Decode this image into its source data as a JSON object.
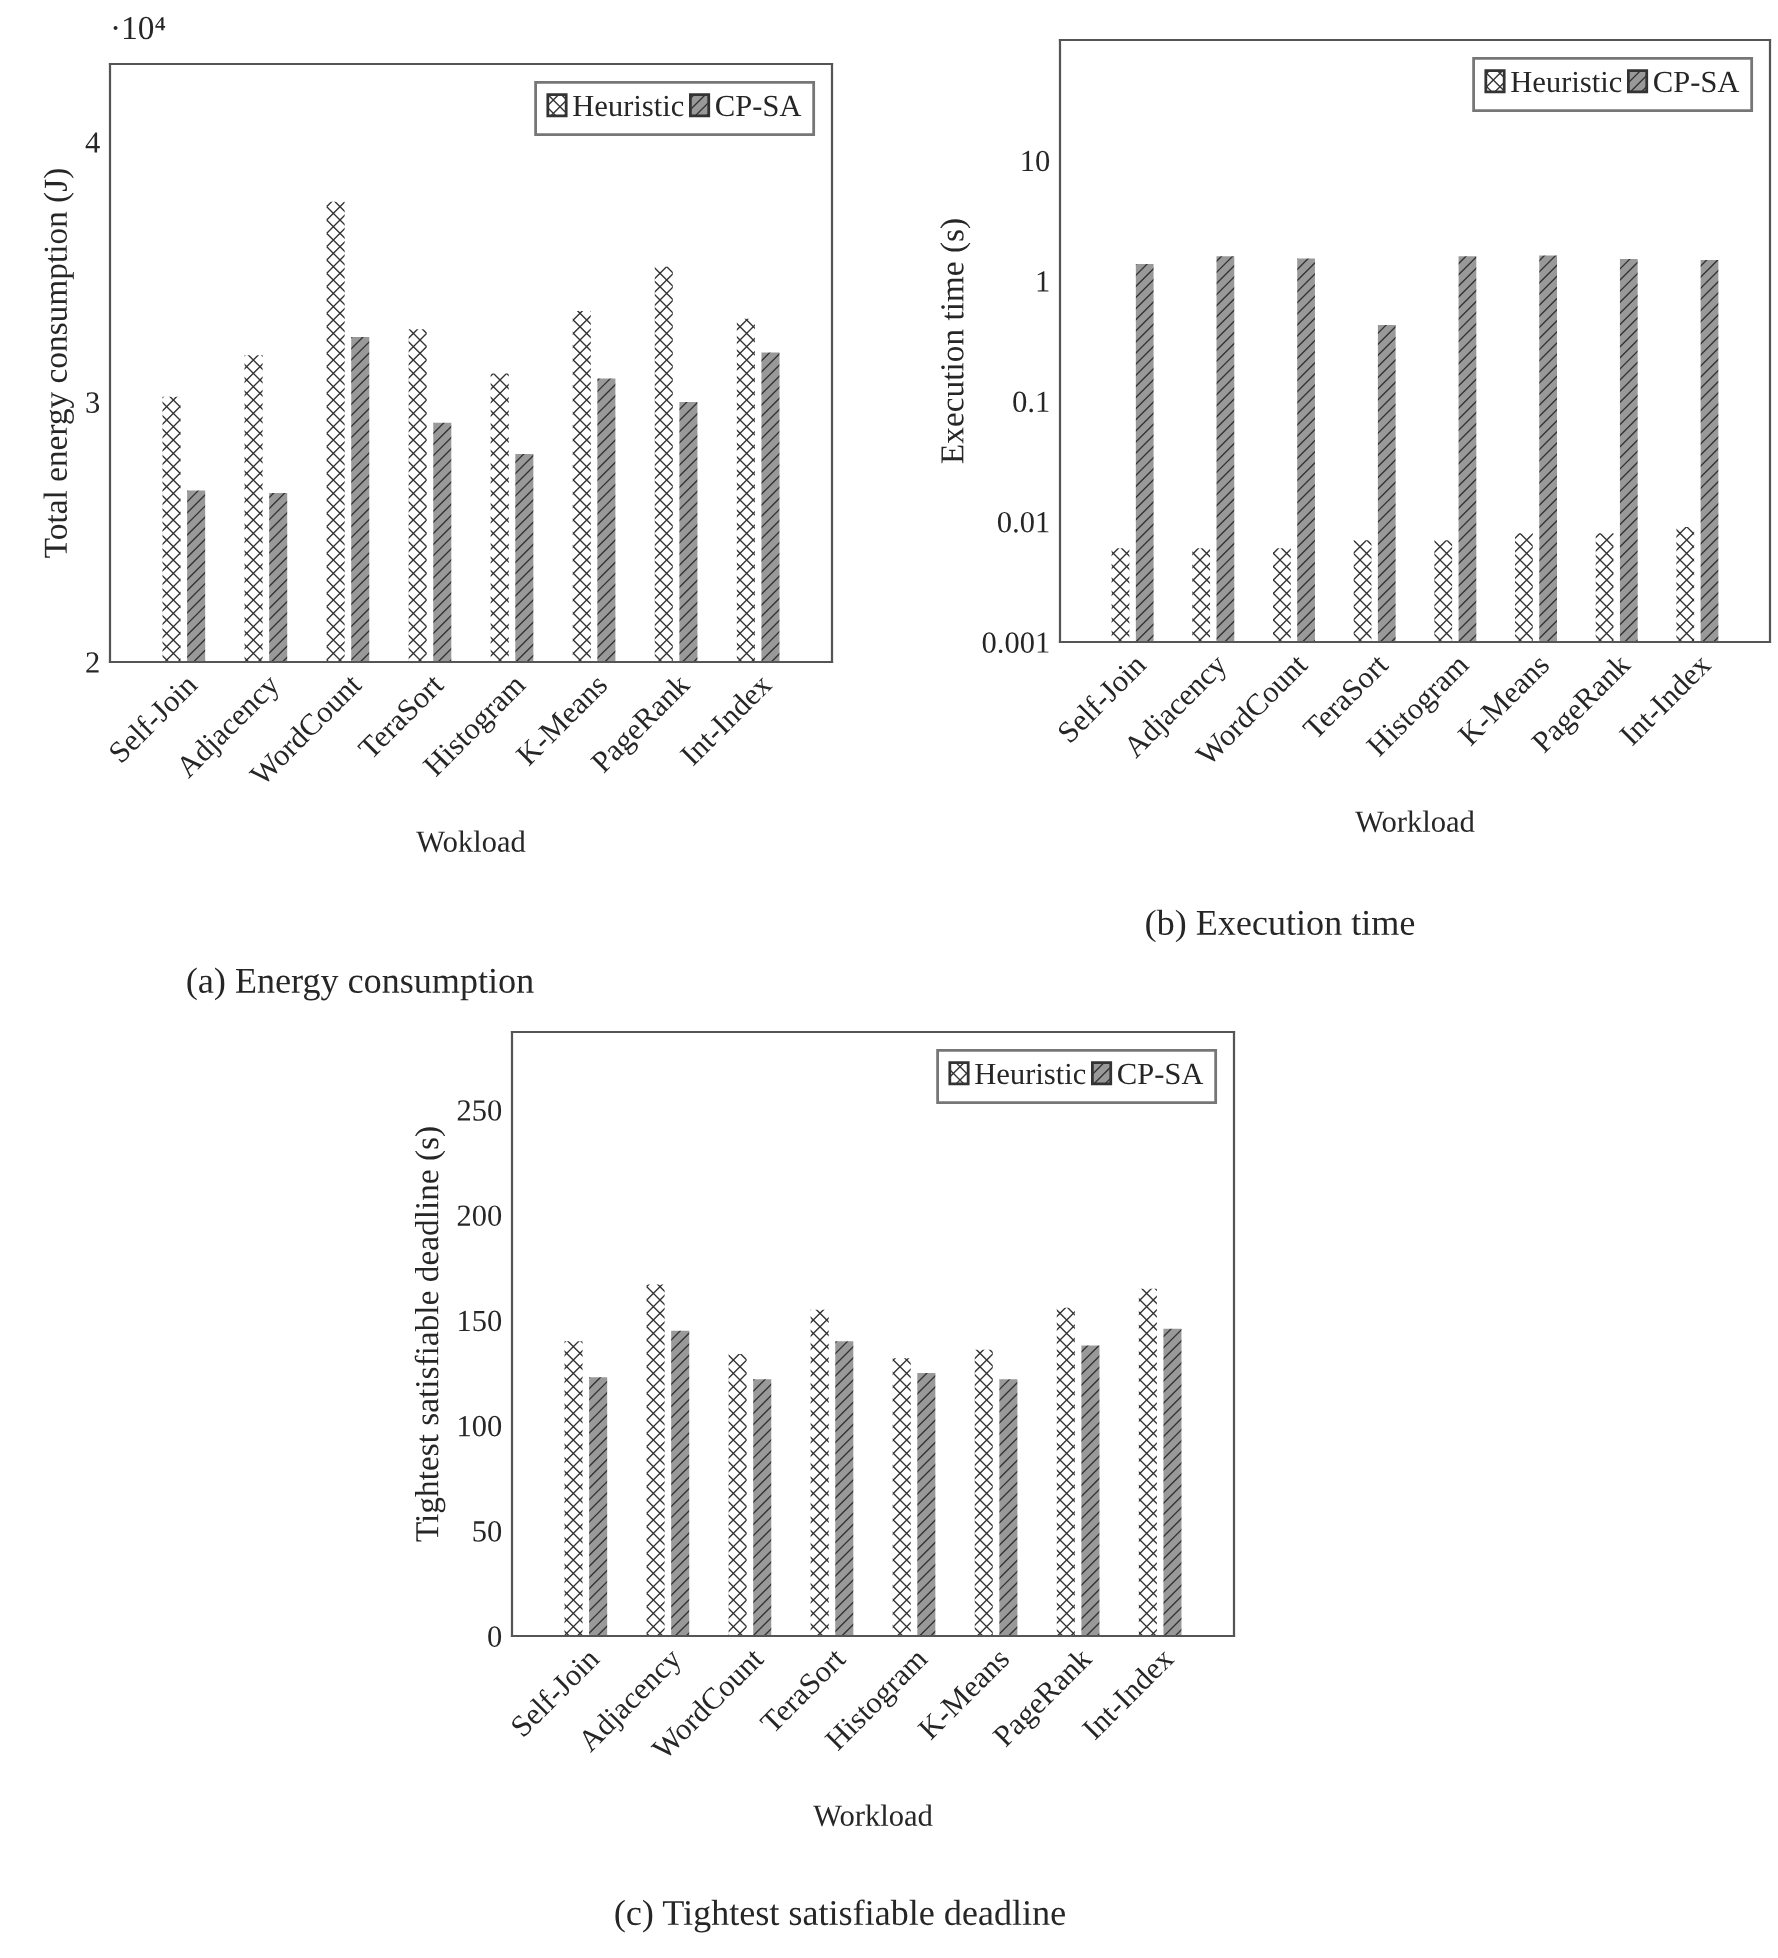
{
  "chart_data": [
    {
      "type": "bar",
      "ylabel": "Total energy consumption (J)",
      "xlabel": "Wokload",
      "annotations": [
        "·10⁴",
        "(a) Energy consumption"
      ],
      "categories": [
        "Self-Join",
        "Adjacency",
        "WordCount",
        "TeraSort",
        "Histogram",
        "K-Means",
        "PageRank",
        "Int-Index"
      ],
      "series": [
        {
          "name": "Heuristic",
          "color": "#ffffff",
          "values": [
            3.02,
            3.18,
            3.77,
            3.28,
            3.11,
            3.35,
            3.52,
            3.32
          ]
        },
        {
          "name": "CP-SA",
          "color": "#999999",
          "values": [
            2.66,
            2.65,
            3.25,
            2.92,
            2.8,
            3.09,
            3.0,
            3.19
          ]
        }
      ],
      "ylim": [
        2,
        4.3
      ],
      "yticks": [
        2,
        3,
        4
      ],
      "legend": "top right"
    },
    {
      "type": "bar",
      "ylabel": "Execution time (s)",
      "xlabel": "Workload",
      "annotations": [
        "(b) Execution time"
      ],
      "categories": [
        "Self-Join",
        "Adjacency",
        "WordCount",
        "TeraSort",
        "Histogram",
        "K-Means",
        "PageRank",
        "Int-Index"
      ],
      "series": [
        {
          "name": "Heuristic",
          "color": "#ffffff",
          "values": [
            0.006,
            0.006,
            0.006,
            0.007,
            0.007,
            0.008,
            0.008,
            0.009
          ]
        },
        {
          "name": "CP-SA",
          "color": "#999999",
          "values": [
            1.38,
            1.6,
            1.53,
            0.43,
            1.6,
            1.62,
            1.52,
            1.49
          ]
        }
      ],
      "log": "y",
      "ylim": [
        0.001,
        100
      ],
      "yticks": [
        0.001,
        0.01,
        0.1,
        1,
        10
      ],
      "legend": "top right"
    },
    {
      "type": "bar",
      "ylabel": "Tightest satisfiable deadline (s)",
      "xlabel": "Workload",
      "annotations": [
        "(c) Tightest satisfiable deadline"
      ],
      "categories": [
        "Self-Join",
        "Adjacency",
        "WordCount",
        "TeraSort",
        "Histogram",
        "K-Means",
        "PageRank",
        "Int-Index"
      ],
      "series": [
        {
          "name": "Heuristic",
          "color": "#ffffff",
          "values": [
            140,
            167,
            134,
            155,
            132,
            136,
            156,
            165
          ]
        },
        {
          "name": "CP-SA",
          "color": "#999999",
          "values": [
            123,
            145,
            122,
            140,
            125,
            122,
            138,
            146
          ]
        }
      ],
      "ylim": [
        0,
        287
      ],
      "yticks": [
        0,
        50,
        100,
        150,
        200,
        250
      ],
      "legend": "top right"
    }
  ]
}
